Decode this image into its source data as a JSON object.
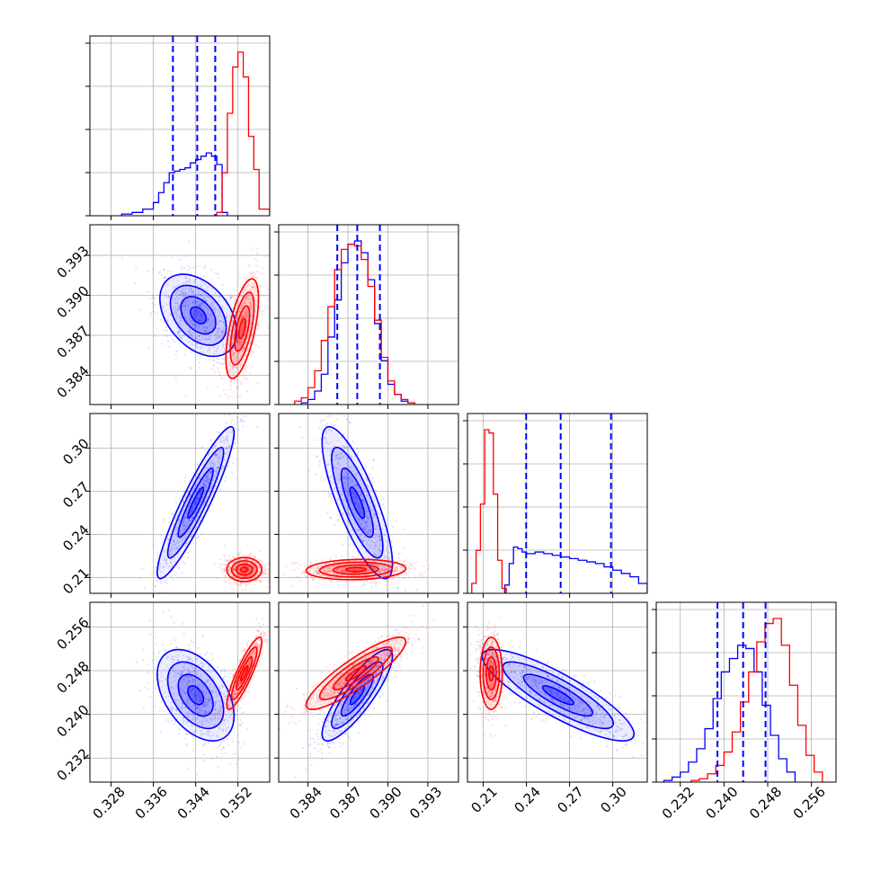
{
  "chart_data": {
    "type": "corner",
    "grid": true,
    "colors": {
      "red_sample": "#ff0000",
      "blue_sample": "#0000ff",
      "grid": "#b0b0b0"
    },
    "params": [
      {
        "range": [
          0.324,
          0.358
        ],
        "ticks": [
          "0.328",
          "0.336",
          "0.344",
          "0.352"
        ],
        "tick_values": [
          0.328,
          0.336,
          0.344,
          0.352
        ]
      },
      {
        "range": [
          0.3818,
          0.3953
        ],
        "ticks": [
          "0.384",
          "0.387",
          "0.390",
          "0.393"
        ],
        "tick_values": [
          0.384,
          0.387,
          0.39,
          0.393
        ]
      },
      {
        "range": [
          0.199,
          0.324
        ],
        "ticks": [
          "0.21",
          "0.24",
          "0.27",
          "0.30"
        ],
        "tick_values": [
          0.21,
          0.24,
          0.27,
          0.3
        ]
      },
      {
        "range": [
          0.2276,
          0.2605
        ],
        "ticks": [
          "0.232",
          "0.240",
          "0.248",
          "0.256"
        ],
        "tick_values": [
          0.232,
          0.24,
          0.248,
          0.256
        ]
      }
    ],
    "histograms": [
      {
        "param": 0,
        "blue": {
          "edges": [
            0.33,
            0.332,
            0.334,
            0.336,
            0.337,
            0.338,
            0.339,
            0.34,
            0.341,
            0.342,
            0.343,
            0.344,
            0.345,
            0.346,
            0.347,
            0.348,
            0.349,
            0.35
          ],
          "counts": [
            1,
            2,
            4,
            8,
            14,
            20,
            26,
            27,
            28,
            29,
            32,
            34,
            36,
            38,
            36,
            31,
            2
          ],
          "quantiles": [
            0.3397,
            0.3443,
            0.3477
          ]
        },
        "red": {
          "edges": [
            0.348,
            0.349,
            0.35,
            0.351,
            0.352,
            0.353,
            0.354,
            0.355,
            0.356,
            0.358
          ],
          "counts": [
            2,
            26,
            62,
            90,
            99,
            84,
            48,
            28,
            4
          ],
          "quantiles": []
        }
      },
      {
        "param": 1,
        "blue": {
          "edges": [
            0.3835,
            0.384,
            0.3845,
            0.385,
            0.3855,
            0.386,
            0.3865,
            0.387,
            0.3875,
            0.388,
            0.3885,
            0.389,
            0.3895,
            0.39,
            0.3905,
            0.391,
            0.3915,
            0.392
          ],
          "counts": [
            1,
            3,
            8,
            18,
            40,
            62,
            84,
            95,
            97,
            90,
            74,
            48,
            26,
            12,
            6,
            2,
            1
          ],
          "quantiles": [
            0.3862,
            0.3877,
            0.3894
          ]
        },
        "red": {
          "edges": [
            0.383,
            0.3835,
            0.384,
            0.3845,
            0.385,
            0.3855,
            0.386,
            0.3865,
            0.387,
            0.3875,
            0.388,
            0.3885,
            0.389,
            0.3895,
            0.39,
            0.3905,
            0.391,
            0.3915,
            0.392
          ],
          "counts": [
            2,
            4,
            10,
            20,
            38,
            58,
            80,
            92,
            95,
            94,
            86,
            70,
            50,
            28,
            14,
            6,
            3,
            1
          ],
          "quantiles": []
        }
      },
      {
        "param": 2,
        "blue": {
          "edges": [
            0.225,
            0.228,
            0.231,
            0.234,
            0.237,
            0.24,
            0.246,
            0.252,
            0.258,
            0.264,
            0.27,
            0.276,
            0.282,
            0.288,
            0.294,
            0.3,
            0.306,
            0.312,
            0.318,
            0.324
          ],
          "counts": [
            5,
            18,
            28,
            27,
            25,
            24,
            25,
            24,
            23,
            22,
            21,
            20,
            19,
            18,
            16,
            14,
            12,
            10,
            6
          ],
          "quantiles": [
            0.2398,
            0.2638,
            0.2988
          ]
        },
        "red": {
          "edges": [
            0.202,
            0.205,
            0.208,
            0.211,
            0.214,
            0.217,
            0.22,
            0.223,
            0.226
          ],
          "counts": [
            6,
            26,
            54,
            99,
            97,
            60,
            20,
            3
          ],
          "quantiles": []
        }
      },
      {
        "param": 3,
        "blue": {
          "edges": [
            0.229,
            0.2305,
            0.232,
            0.2335,
            0.235,
            0.2365,
            0.238,
            0.2395,
            0.241,
            0.2425,
            0.244,
            0.2455,
            0.247,
            0.2485,
            0.25,
            0.2515,
            0.253
          ],
          "counts": [
            1,
            3,
            6,
            12,
            20,
            32,
            50,
            66,
            74,
            82,
            80,
            66,
            46,
            28,
            14,
            6
          ],
          "quantiles": [
            0.2388,
            0.2435,
            0.2476
          ]
        },
        "red": {
          "edges": [
            0.234,
            0.2355,
            0.237,
            0.2385,
            0.24,
            0.2415,
            0.243,
            0.2445,
            0.246,
            0.2475,
            0.249,
            0.2505,
            0.252,
            0.2535,
            0.255,
            0.2565,
            0.258
          ],
          "counts": [
            1,
            2,
            5,
            10,
            18,
            30,
            48,
            66,
            84,
            95,
            98,
            82,
            58,
            34,
            16,
            6
          ],
          "quantiles": []
        }
      }
    ],
    "pairs": [
      {
        "row": 1,
        "col": 0,
        "blue": {
          "center": [
            0.3445,
            0.3885
          ],
          "sd": [
            0.0033,
            0.0014
          ],
          "rho": -0.4
        },
        "red": {
          "center": [
            0.3528,
            0.3875
          ],
          "sd": [
            0.0014,
            0.0017
          ],
          "rho": 0.6
        }
      },
      {
        "row": 2,
        "col": 0,
        "blue": {
          "center": [
            0.344,
            0.262
          ],
          "sd": [
            0.0033,
            0.024
          ],
          "rho": 0.92
        },
        "red": {
          "center": [
            0.3532,
            0.2155
          ],
          "sd": [
            0.0015,
            0.0038
          ],
          "rho": 0.0
        }
      },
      {
        "row": 2,
        "col": 1,
        "blue": {
          "center": [
            0.3877,
            0.262
          ],
          "sd": [
            0.0012,
            0.024
          ],
          "rho": -0.8
        },
        "red": {
          "center": [
            0.3876,
            0.2155
          ],
          "sd": [
            0.0017,
            0.0032
          ],
          "rho": 0.1
        }
      },
      {
        "row": 3,
        "col": 0,
        "blue": {
          "center": [
            0.344,
            0.2435
          ],
          "sd": [
            0.0033,
            0.0038
          ],
          "rho": -0.45
        },
        "red": {
          "center": [
            0.3532,
            0.2475
          ],
          "sd": [
            0.0015,
            0.003
          ],
          "rho": 0.88
        }
      },
      {
        "row": 3,
        "col": 1,
        "blue": {
          "center": [
            0.3877,
            0.2435
          ],
          "sd": [
            0.0012,
            0.0038
          ],
          "rho": 0.85
        },
        "red": {
          "center": [
            0.3876,
            0.2475
          ],
          "sd": [
            0.0017,
            0.003
          ],
          "rho": 0.88
        }
      },
      {
        "row": 3,
        "col": 2,
        "blue": {
          "center": [
            0.262,
            0.2435
          ],
          "sd": [
            0.024,
            0.0038
          ],
          "rho": -0.85
        },
        "red": {
          "center": [
            0.2155,
            0.2475
          ],
          "sd": [
            0.0035,
            0.003
          ],
          "rho": 0.0
        }
      }
    ]
  }
}
